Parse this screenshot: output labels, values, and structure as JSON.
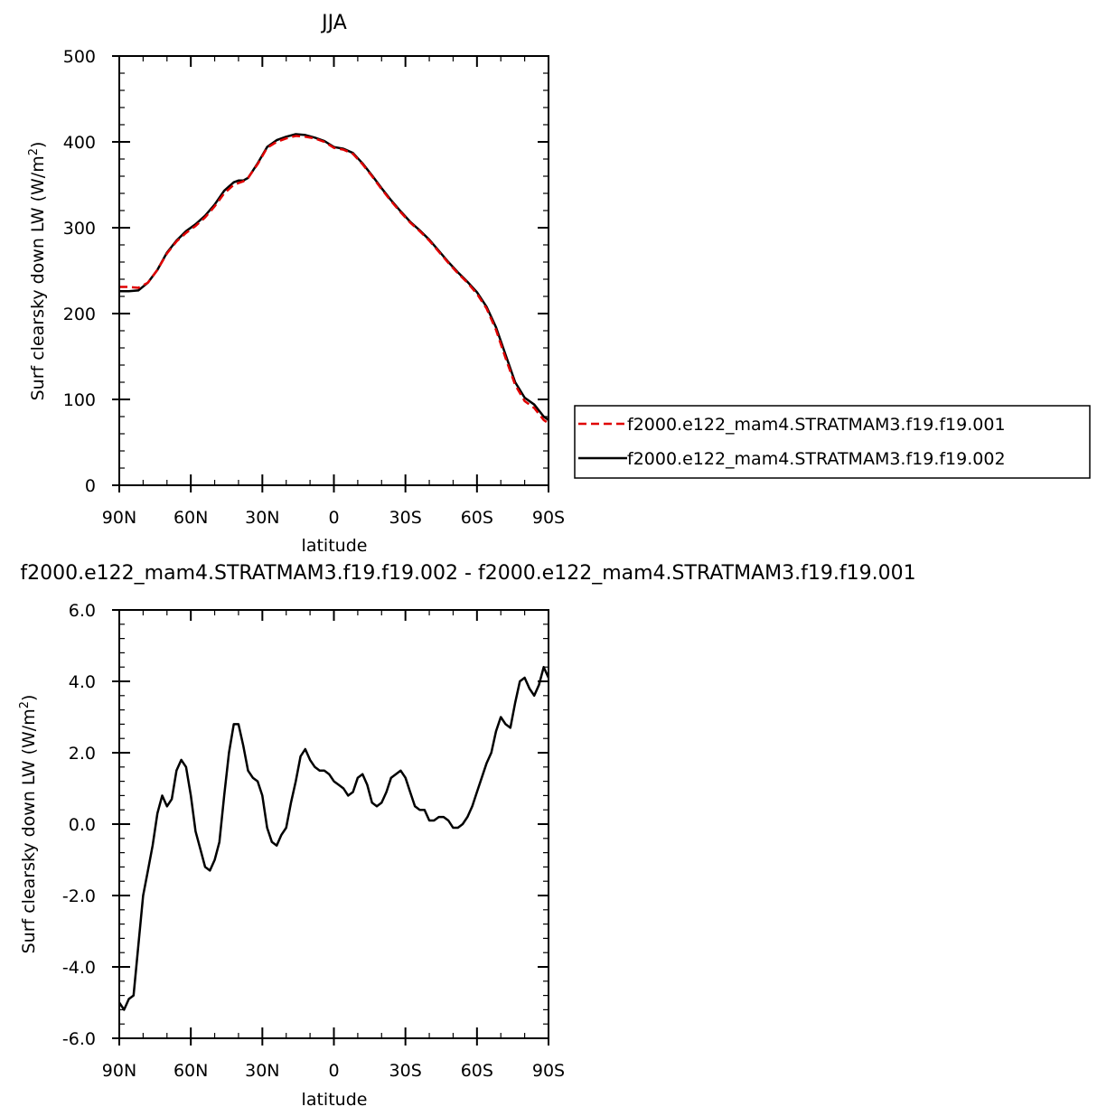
{
  "chart_data": [
    {
      "type": "line",
      "title": "JJA",
      "xlabel": "latitude",
      "ylabel": "Surf clearsky down LW (W/m²)",
      "ylabel_main": "Surf clearsky down LW (W/m",
      "ylabel_sup": "2",
      "ylabel_end": ")",
      "xlim": [
        90,
        -90
      ],
      "ylim": [
        0,
        500
      ],
      "xticks": [
        90,
        60,
        30,
        0,
        -30,
        -60,
        -90
      ],
      "xtick_labels": [
        "90N",
        "60N",
        "30N",
        "0",
        "30S",
        "60S",
        "90S"
      ],
      "yticks": [
        0,
        100,
        200,
        300,
        400,
        500
      ],
      "ytick_labels": [
        "0",
        "100",
        "200",
        "300",
        "400",
        "500"
      ],
      "legend_position": "right",
      "series": [
        {
          "name": "f2000.e122_mam4.STRATMAM3.f19.f19.001",
          "color": "#e00000",
          "style": "dashed",
          "x": [
            90,
            86,
            82,
            78,
            74,
            70,
            66,
            62,
            58,
            54,
            50,
            46,
            42,
            40,
            38,
            36,
            32,
            28,
            24,
            20,
            16,
            12,
            8,
            4,
            0,
            -4,
            -8,
            -12,
            -16,
            -20,
            -24,
            -28,
            -32,
            -36,
            -40,
            -44,
            -48,
            -52,
            -56,
            -60,
            -64,
            -68,
            -72,
            -76,
            -80,
            -84,
            -88,
            -90
          ],
          "y": [
            231,
            231,
            230,
            236,
            251,
            270,
            284,
            294,
            302,
            312,
            325,
            340,
            350,
            352,
            354,
            358,
            374,
            393,
            400,
            404,
            407,
            406,
            404,
            400,
            393,
            391,
            386,
            374,
            360,
            345,
            331,
            318,
            306,
            296,
            285,
            272,
            259,
            247,
            236,
            223,
            206,
            181,
            148,
            117,
            98,
            90,
            76,
            72
          ]
        },
        {
          "name": "f2000.e122_mam4.STRATMAM3.f19.f19.002",
          "color": "#000000",
          "style": "solid",
          "x": [
            90,
            86,
            82,
            78,
            74,
            70,
            66,
            62,
            58,
            54,
            50,
            46,
            42,
            40,
            38,
            36,
            32,
            28,
            24,
            20,
            16,
            12,
            8,
            4,
            0,
            -4,
            -8,
            -12,
            -16,
            -20,
            -24,
            -28,
            -32,
            -36,
            -40,
            -44,
            -48,
            -52,
            -56,
            -60,
            -64,
            -68,
            -72,
            -76,
            -80,
            -84,
            -88,
            -90
          ],
          "y": [
            226,
            226,
            227,
            236,
            251,
            271,
            285,
            296,
            304,
            314,
            327,
            343,
            353,
            355,
            355,
            358,
            375,
            394,
            402,
            406,
            409,
            408,
            405,
            401,
            394,
            392,
            387,
            375,
            361,
            346,
            332,
            319,
            307,
            297,
            286,
            273,
            260,
            248,
            237,
            225,
            208,
            184,
            152,
            120,
            102,
            94,
            80,
            76
          ]
        }
      ]
    },
    {
      "type": "line",
      "title": "f2000.e122_mam4.STRATMAM3.f19.f19.002 - f2000.e122_mam4.STRATMAM3.f19.f19.001",
      "xlabel": "latitude",
      "ylabel": "Surf clearsky down LW (W/m²)",
      "ylabel_main": "Surf clearsky down LW (W/m",
      "ylabel_sup": "2",
      "ylabel_end": ")",
      "xlim": [
        90,
        -90
      ],
      "ylim": [
        -6,
        6
      ],
      "xticks": [
        90,
        60,
        30,
        0,
        -30,
        -60,
        -90
      ],
      "xtick_labels": [
        "90N",
        "60N",
        "30N",
        "0",
        "30S",
        "60S",
        "90S"
      ],
      "yticks": [
        -6,
        -4,
        -2,
        0,
        2,
        4,
        6
      ],
      "ytick_labels": [
        "-6.0",
        "-4.0",
        "-2.0",
        "0.0",
        "2.0",
        "4.0",
        "6.0"
      ],
      "series": [
        {
          "color": "#000000",
          "style": "solid",
          "x": [
            90,
            88,
            86,
            84,
            82,
            80,
            78,
            76,
            74,
            72,
            70,
            68,
            66,
            64,
            62,
            60,
            58,
            56,
            54,
            52,
            50,
            48,
            46,
            44,
            42,
            40,
            38,
            36,
            34,
            32,
            30,
            28,
            26,
            24,
            22,
            20,
            18,
            16,
            14,
            12,
            10,
            8,
            6,
            4,
            2,
            0,
            -2,
            -4,
            -6,
            -8,
            -10,
            -12,
            -14,
            -16,
            -18,
            -20,
            -22,
            -24,
            -26,
            -28,
            -30,
            -32,
            -34,
            -36,
            -38,
            -40,
            -42,
            -44,
            -46,
            -48,
            -50,
            -52,
            -54,
            -56,
            -58,
            -60,
            -62,
            -64,
            -66,
            -68,
            -70,
            -72,
            -74,
            -76,
            -78,
            -80,
            -82,
            -84,
            -86,
            -88,
            -90
          ],
          "y": [
            -5.0,
            -5.2,
            -4.9,
            -4.8,
            -3.4,
            -2.0,
            -1.3,
            -0.6,
            0.3,
            0.8,
            0.5,
            0.7,
            1.5,
            1.8,
            1.6,
            0.8,
            -0.2,
            -0.7,
            -1.2,
            -1.3,
            -1.0,
            -0.5,
            0.8,
            2.0,
            2.8,
            2.8,
            2.2,
            1.5,
            1.3,
            1.2,
            0.8,
            -0.1,
            -0.5,
            -0.6,
            -0.3,
            -0.1,
            0.6,
            1.2,
            1.9,
            2.1,
            1.8,
            1.6,
            1.5,
            1.5,
            1.4,
            1.2,
            1.1,
            1.0,
            0.8,
            0.9,
            1.3,
            1.4,
            1.1,
            0.6,
            0.5,
            0.6,
            0.9,
            1.3,
            1.4,
            1.5,
            1.3,
            0.9,
            0.5,
            0.4,
            0.4,
            0.1,
            0.1,
            0.2,
            0.2,
            0.1,
            -0.1,
            -0.1,
            0.0,
            0.2,
            0.5,
            0.9,
            1.3,
            1.7,
            2.0,
            2.6,
            3.0,
            2.8,
            2.7,
            3.4,
            4.0,
            4.1,
            3.8,
            3.6,
            3.9,
            4.4,
            4.1
          ]
        }
      ]
    }
  ]
}
